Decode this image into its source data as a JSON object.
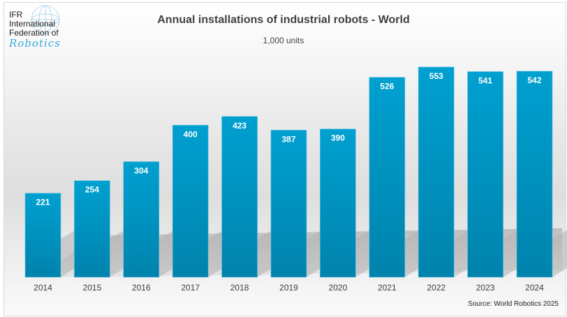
{
  "logo": {
    "line1": "IFR",
    "line2": "International",
    "line3": "Federation of",
    "line4": "Robotics"
  },
  "chart_data": {
    "type": "bar",
    "title": "Annual installations of industrial robots - World",
    "subtitle": "1,000 units",
    "xlabel": "",
    "ylabel": "",
    "categories": [
      "2014",
      "2015",
      "2016",
      "2017",
      "2018",
      "2019",
      "2020",
      "2021",
      "2022",
      "2023",
      "2024"
    ],
    "values": [
      221,
      254,
      304,
      400,
      423,
      387,
      390,
      526,
      553,
      541,
      542
    ],
    "ylim": [
      0,
      553
    ],
    "grid": false,
    "legend": "none",
    "source": "Source: World Robotics 2025",
    "colors": {
      "bar": "#0090c0",
      "bar_top": "#00a0d0",
      "label": "#ffffff"
    }
  }
}
